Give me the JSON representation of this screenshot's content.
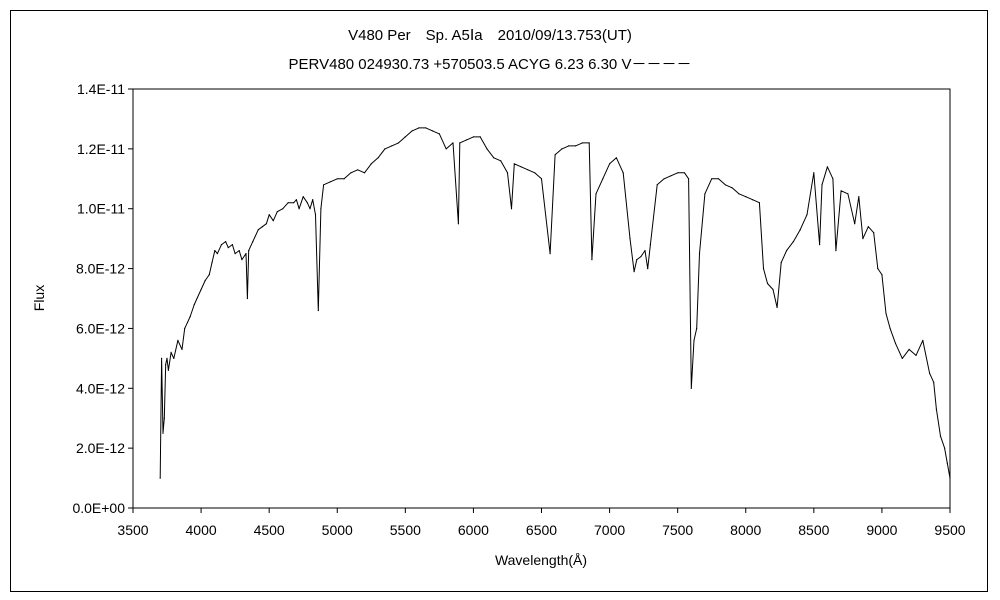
{
  "chart_data": {
    "type": "line",
    "title": "V480 Per　Sp. A5Ⅰa　2010/09/13.753(UT)",
    "subtitle": "PERV480 024930.73 +570503.5 ACYG 6.23 6.30 V－－－－",
    "xlabel": "Wavelength(Å)",
    "ylabel": "Flux",
    "xlim": [
      3500,
      9500
    ],
    "ylim": [
      0,
      1.4e-11
    ],
    "xticks": [
      3500,
      4000,
      4500,
      5000,
      5500,
      6000,
      6500,
      7000,
      7500,
      8000,
      8500,
      9000,
      9500
    ],
    "xtick_labels": [
      "3500",
      "4000",
      "4500",
      "5000",
      "5500",
      "6000",
      "6500",
      "7000",
      "7500",
      "8000",
      "8500",
      "9000",
      "9500"
    ],
    "yticks": [
      0,
      2e-12,
      4e-12,
      6e-12,
      8e-12,
      1e-11,
      1.2e-11,
      1.4e-11
    ],
    "ytick_labels": [
      "0.0E+00",
      "2.0E-12",
      "4.0E-12",
      "6.0E-12",
      "8.0E-12",
      "1.0E-11",
      "1.2E-11",
      "1.4E-11"
    ],
    "grid": false,
    "legend": false,
    "line_color": "#000000",
    "series": [
      {
        "x": [
          3700,
          3710,
          3720,
          3730,
          3740,
          3750,
          3760,
          3780,
          3800,
          3830,
          3860,
          3880,
          3900,
          3920,
          3950,
          3970,
          4000,
          4030,
          4060,
          4080,
          4101,
          4120,
          4150,
          4180,
          4200,
          4230,
          4250,
          4280,
          4300,
          4330,
          4340,
          4350,
          4380,
          4420,
          4450,
          4480,
          4500,
          4530,
          4560,
          4600,
          4640,
          4680,
          4700,
          4720,
          4750,
          4780,
          4800,
          4820,
          4840,
          4861,
          4880,
          4900,
          4950,
          5000,
          5050,
          5100,
          5150,
          5200,
          5250,
          5300,
          5350,
          5400,
          5450,
          5500,
          5550,
          5600,
          5650,
          5700,
          5750,
          5800,
          5850,
          5890,
          5900,
          5950,
          6000,
          6050,
          6100,
          6150,
          6200,
          6250,
          6280,
          6300,
          6350,
          6400,
          6450,
          6500,
          6563,
          6600,
          6650,
          6700,
          6750,
          6800,
          6850,
          6870,
          6900,
          6950,
          7000,
          7050,
          7100,
          7150,
          7180,
          7200,
          7230,
          7260,
          7280,
          7300,
          7350,
          7400,
          7450,
          7500,
          7550,
          7580,
          7600,
          7620,
          7640,
          7660,
          7700,
          7750,
          7800,
          7850,
          7900,
          7950,
          8000,
          8050,
          8100,
          8130,
          8160,
          8200,
          8230,
          8260,
          8300,
          8350,
          8400,
          8450,
          8500,
          8542,
          8560,
          8600,
          8640,
          8662,
          8700,
          8750,
          8800,
          8830,
          8860,
          8900,
          8940,
          8970,
          9000,
          9030,
          9060,
          9100,
          9150,
          9200,
          9250,
          9300,
          9350,
          9380,
          9400,
          9430,
          9460,
          9480,
          9500
        ],
        "y": [
          1e-12,
          5e-12,
          2.5e-12,
          3e-12,
          4.8e-12,
          5e-12,
          4.6e-12,
          5.2e-12,
          5e-12,
          5.6e-12,
          5.3e-12,
          6e-12,
          6.2e-12,
          6.4e-12,
          6.8e-12,
          7e-12,
          7.3e-12,
          7.6e-12,
          7.8e-12,
          8.2e-12,
          8.6e-12,
          8.5e-12,
          8.8e-12,
          8.9e-12,
          8.7e-12,
          8.8e-12,
          8.5e-12,
          8.6e-12,
          8.3e-12,
          8.5e-12,
          7e-12,
          8.6e-12,
          8.9e-12,
          9.3e-12,
          9.4e-12,
          9.5e-12,
          9.8e-12,
          9.6e-12,
          9.9e-12,
          1e-11,
          1.02e-11,
          1.02e-11,
          1.03e-11,
          1e-11,
          1.04e-11,
          1.02e-11,
          1e-11,
          1.03e-11,
          9.8e-12,
          6.6e-12,
          1e-11,
          1.08e-11,
          1.09e-11,
          1.1e-11,
          1.1e-11,
          1.12e-11,
          1.13e-11,
          1.12e-11,
          1.15e-11,
          1.17e-11,
          1.2e-11,
          1.21e-11,
          1.22e-11,
          1.24e-11,
          1.26e-11,
          1.27e-11,
          1.27e-11,
          1.26e-11,
          1.25e-11,
          1.2e-11,
          1.22e-11,
          9.5e-12,
          1.22e-11,
          1.23e-11,
          1.24e-11,
          1.24e-11,
          1.2e-11,
          1.17e-11,
          1.16e-11,
          1.12e-11,
          1e-11,
          1.15e-11,
          1.14e-11,
          1.13e-11,
          1.12e-11,
          1.1e-11,
          8.5e-12,
          1.18e-11,
          1.2e-11,
          1.21e-11,
          1.21e-11,
          1.22e-11,
          1.22e-11,
          8.3e-12,
          1.05e-11,
          1.1e-11,
          1.15e-11,
          1.17e-11,
          1.12e-11,
          9e-12,
          7.9e-12,
          8.3e-12,
          8.4e-12,
          8.6e-12,
          8e-12,
          8.8e-12,
          1.08e-11,
          1.1e-11,
          1.11e-11,
          1.12e-11,
          1.12e-11,
          1.1e-11,
          4e-12,
          5.6e-12,
          6e-12,
          8.5e-12,
          1.05e-11,
          1.1e-11,
          1.1e-11,
          1.08e-11,
          1.07e-11,
          1.05e-11,
          1.04e-11,
          1.03e-11,
          1.02e-11,
          8e-12,
          7.5e-12,
          7.3e-12,
          6.7e-12,
          8.2e-12,
          8.6e-12,
          8.9e-12,
          9.3e-12,
          9.8e-12,
          1.12e-11,
          8.8e-12,
          1.08e-11,
          1.14e-11,
          1.1e-11,
          8.6e-12,
          1.06e-11,
          1.05e-11,
          9.5e-12,
          1.04e-11,
          9e-12,
          9.4e-12,
          9.2e-12,
          8e-12,
          7.8e-12,
          6.5e-12,
          6e-12,
          5.5e-12,
          5e-12,
          5.3e-12,
          5.1e-12,
          5.6e-12,
          4.5e-12,
          4.2e-12,
          3.3e-12,
          2.4e-12,
          2e-12,
          1.5e-12,
          1e-12
        ]
      }
    ]
  }
}
